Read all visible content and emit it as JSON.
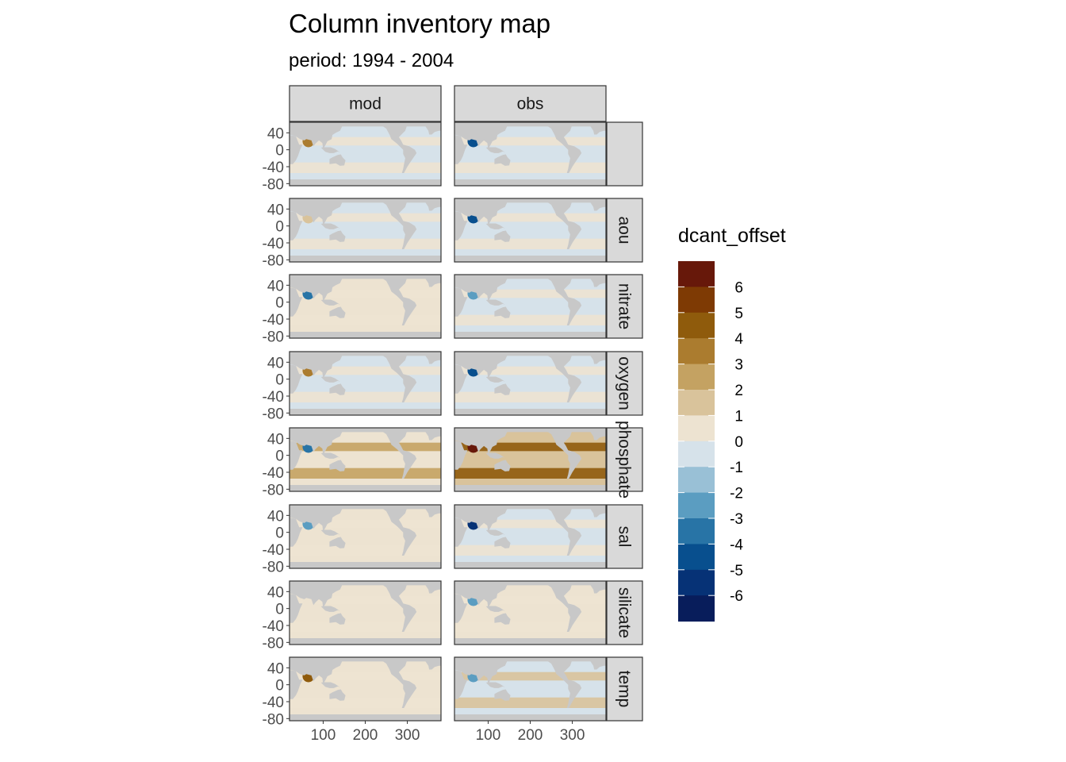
{
  "chart_data": {
    "type": "heatmap",
    "title": "Column inventory map",
    "subtitle": "period: 1994 - 2004",
    "facet_columns": [
      "mod",
      "obs"
    ],
    "facet_rows": [
      "",
      "aou",
      "nitrate",
      "oxygen",
      "phosphate",
      "sal",
      "silicate",
      "temp"
    ],
    "x_ticks": [
      100,
      200,
      300
    ],
    "y_ticks": [
      40,
      0,
      -40,
      -80
    ],
    "xlim": [
      20,
      380
    ],
    "ylim": [
      -85,
      65
    ],
    "legend": {
      "title": "dcant_offset",
      "placement": "right",
      "labels": [
        6,
        5,
        4,
        3,
        2,
        1,
        0,
        -1,
        -2,
        -3,
        -4,
        -5,
        -6
      ],
      "colors": [
        "#67180a",
        "#7e3a04",
        "#8f5b0c",
        "#ab7c2f",
        "#c4a262",
        "#d9c39b",
        "#ede3d1",
        "#d6e2ea",
        "#99c0d6",
        "#5b9dc1",
        "#2874a6",
        "#084f8e",
        "#063276",
        "#081d5b"
      ]
    },
    "facets": [
      {
        "column": "mod",
        "row": "",
        "dominant_value": -0.5,
        "positive_band_value": 0.5,
        "hotspot_value": 3
      },
      {
        "column": "obs",
        "row": "",
        "dominant_value": -0.5,
        "positive_band_value": 0.5,
        "hotspot_value": -5
      },
      {
        "column": "mod",
        "row": "aou",
        "dominant_value": -0.5,
        "positive_band_value": 0.5,
        "hotspot_value": 1
      },
      {
        "column": "obs",
        "row": "aou",
        "dominant_value": -0.5,
        "positive_band_value": 0.5,
        "hotspot_value": -5
      },
      {
        "column": "mod",
        "row": "nitrate",
        "dominant_value": 0.5,
        "positive_band_value": 0.5,
        "hotspot_value": -4
      },
      {
        "column": "obs",
        "row": "nitrate",
        "dominant_value": -0.5,
        "positive_band_value": 0.5,
        "hotspot_value": -3
      },
      {
        "column": "mod",
        "row": "oxygen",
        "dominant_value": -0.5,
        "positive_band_value": 0.5,
        "hotspot_value": 3
      },
      {
        "column": "obs",
        "row": "oxygen",
        "dominant_value": -0.5,
        "positive_band_value": 0.5,
        "hotspot_value": -5
      },
      {
        "column": "mod",
        "row": "phosphate",
        "dominant_value": 0.5,
        "positive_band_value": 2.5,
        "hotspot_value": -4
      },
      {
        "column": "obs",
        "row": "phosphate",
        "dominant_value": 1.5,
        "positive_band_value": 4,
        "hotspot_value": 6.5
      },
      {
        "column": "mod",
        "row": "sal",
        "dominant_value": 0.5,
        "positive_band_value": 0.5,
        "hotspot_value": -3
      },
      {
        "column": "obs",
        "row": "sal",
        "dominant_value": -0.5,
        "positive_band_value": 0.5,
        "hotspot_value": -5.5
      },
      {
        "column": "mod",
        "row": "silicate",
        "dominant_value": 0.5,
        "positive_band_value": 0.5,
        "hotspot_value": 0.5
      },
      {
        "column": "obs",
        "row": "silicate",
        "dominant_value": 0.5,
        "positive_band_value": 0.5,
        "hotspot_value": -3
      },
      {
        "column": "mod",
        "row": "temp",
        "dominant_value": 0.5,
        "positive_band_value": 0.5,
        "hotspot_value": 4
      },
      {
        "column": "obs",
        "row": "temp",
        "dominant_value": -0.5,
        "positive_band_value": 1.5,
        "hotspot_value": -3
      }
    ]
  }
}
